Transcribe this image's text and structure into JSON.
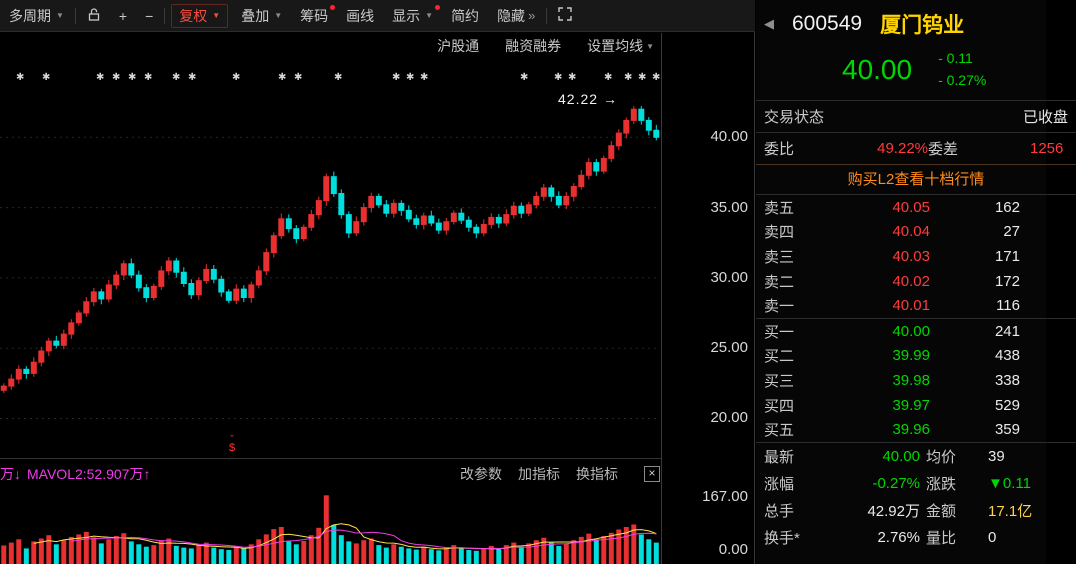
{
  "toolbar": {
    "period": "多周期",
    "plus": "+",
    "minus": "−",
    "fuquan": "复权",
    "diejia": "叠加",
    "chouma": "筹码",
    "huaxian": "画线",
    "xianshi": "显示",
    "jianyue": "简约",
    "yincang": "隐藏",
    "yincang_arrows": "»",
    "caret": "▼",
    "accent_red": "#ff4a3d"
  },
  "subtoolbar": {
    "items": [
      "沪股通",
      "融资融券",
      "设置均线"
    ]
  },
  "volume_header": {
    "left_fragment": "万↓",
    "mavol2": "MAVOL2:52.907万↑",
    "buttons": [
      "改参数",
      "加指标",
      "换指标"
    ],
    "close": "×"
  },
  "chart_data": {
    "type": "candlestick",
    "symbol": "600549 厦门钨业",
    "annotation": "42.22",
    "annotation_arrow": "→",
    "first_open": 22.0,
    "price_range": [
      17.4,
      45.5
    ],
    "grid_prices": [
      40,
      35,
      30,
      25,
      20
    ],
    "y_axis_labels": [
      "40.00",
      "35.00",
      "30.00",
      "25.00",
      "20.00"
    ],
    "closes": [
      22.3,
      22.8,
      23.5,
      23.2,
      24.0,
      24.8,
      25.5,
      25.2,
      26.0,
      26.8,
      27.5,
      28.3,
      29.0,
      28.5,
      29.5,
      30.2,
      31.0,
      30.2,
      29.3,
      28.6,
      29.4,
      30.5,
      31.2,
      30.4,
      29.6,
      28.8,
      29.8,
      30.6,
      29.9,
      29.0,
      28.4,
      29.2,
      28.6,
      29.5,
      30.5,
      31.8,
      33.0,
      34.2,
      33.5,
      32.8,
      33.6,
      34.5,
      35.5,
      37.2,
      36.0,
      34.5,
      33.2,
      34.0,
      35.0,
      35.8,
      35.2,
      34.6,
      35.3,
      34.8,
      34.2,
      33.8,
      34.4,
      33.9,
      33.4,
      34.0,
      34.6,
      34.1,
      33.6,
      33.2,
      33.8,
      34.3,
      33.9,
      34.5,
      35.1,
      34.6,
      35.2,
      35.8,
      36.4,
      35.8,
      35.2,
      35.8,
      36.5,
      37.3,
      38.2,
      37.6,
      38.5,
      39.4,
      40.3,
      41.2,
      42.0,
      41.2,
      40.5,
      40.0
    ],
    "volumes": [
      45,
      52,
      60,
      38,
      55,
      62,
      70,
      48,
      58,
      66,
      72,
      78,
      65,
      50,
      60,
      68,
      75,
      55,
      48,
      42,
      46,
      58,
      62,
      44,
      40,
      38,
      45,
      52,
      40,
      36,
      34,
      42,
      38,
      48,
      60,
      72,
      85,
      90,
      55,
      48,
      56,
      70,
      88,
      167,
      95,
      70,
      55,
      50,
      58,
      62,
      46,
      40,
      48,
      42,
      38,
      35,
      42,
      36,
      33,
      40,
      46,
      38,
      34,
      32,
      38,
      44,
      36,
      46,
      52,
      42,
      50,
      58,
      64,
      52,
      44,
      50,
      58,
      66,
      74,
      60,
      68,
      76,
      84,
      90,
      96,
      72,
      60,
      52
    ],
    "volume_max": 180,
    "volume_axis_labels": [
      "167.00",
      "0.00"
    ],
    "max_high": 42.22,
    "marker_glyph": "✱",
    "marker_positions": [
      16,
      42,
      96,
      112,
      128,
      144,
      172,
      188,
      232,
      278,
      294,
      334,
      392,
      406,
      420,
      520,
      554,
      568,
      604,
      624,
      638,
      652
    ],
    "dividend_marker": {
      "top": "ˇ",
      "bottom": "$"
    },
    "colors": {
      "up": "#e83030",
      "down": "#00dede",
      "mavol1": "#ffe34d",
      "mavol2": "#f03ce8",
      "grid": "#1d2b2b"
    }
  },
  "quote": {
    "back_arrow": "◀",
    "code": "600549",
    "name": "厦门钨业",
    "price": "40.00",
    "change": "- 0.11",
    "change_pct": "- 0.27%",
    "status_label": "交易状态",
    "status_value": "已收盘",
    "weibi_label": "委比",
    "weibi_value": "49.22%",
    "weicha_label": "委差",
    "weicha_value": "1256",
    "l2_link": "购买L2查看十档行情",
    "asks": [
      {
        "label": "卖五",
        "price": "40.05",
        "vol": "162"
      },
      {
        "label": "卖四",
        "price": "40.04",
        "vol": "27"
      },
      {
        "label": "卖三",
        "price": "40.03",
        "vol": "171"
      },
      {
        "label": "卖二",
        "price": "40.02",
        "vol": "172"
      },
      {
        "label": "卖一",
        "price": "40.01",
        "vol": "116"
      }
    ],
    "bids": [
      {
        "label": "买一",
        "price": "40.00",
        "vol": "241"
      },
      {
        "label": "买二",
        "price": "39.99",
        "vol": "438"
      },
      {
        "label": "买三",
        "price": "39.98",
        "vol": "338"
      },
      {
        "label": "买四",
        "price": "39.97",
        "vol": "529"
      },
      {
        "label": "买五",
        "price": "39.96",
        "vol": "359"
      }
    ],
    "stats": [
      {
        "label": "最新",
        "value": "40.00",
        "color": "green",
        "label2": "均价",
        "value2": "39",
        "color2": "white"
      },
      {
        "label": "涨幅",
        "value": "-0.27%",
        "color": "green",
        "label2": "涨跌",
        "value2": "▼0.11",
        "color2": "green"
      },
      {
        "label": "总手",
        "value": "42.92万",
        "color": "white",
        "label2": "金额",
        "value2": "17.1亿",
        "color2": "yellow"
      },
      {
        "label": "换手*",
        "value": "2.76%",
        "color": "white",
        "label2": "量比",
        "value2": "0",
        "color2": "white"
      }
    ]
  }
}
